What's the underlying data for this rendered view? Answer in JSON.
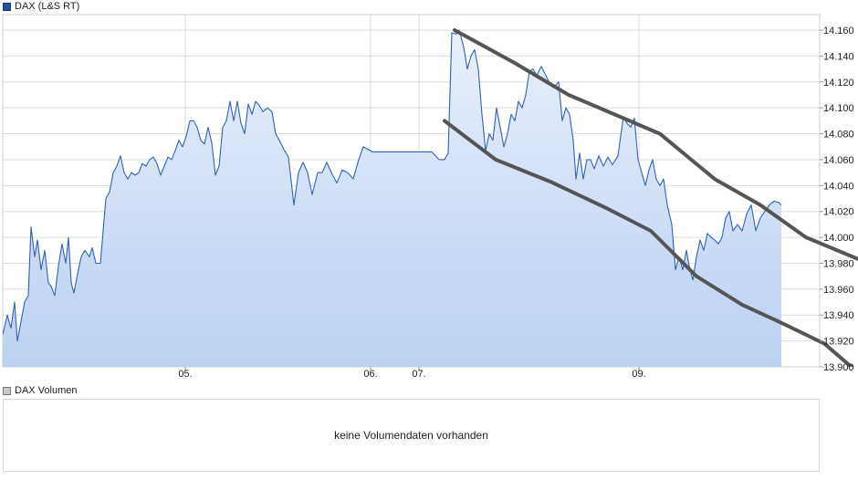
{
  "legend": {
    "price_label": "DAX (L&S RT)",
    "volume_label": "DAX Volumen"
  },
  "volume_panel": {
    "message": "keine Volumendaten vorhanden"
  },
  "colors": {
    "price_line": "#2e62b8",
    "area_top": "#e8f0fb",
    "area_bottom": "#bcd0f2",
    "channel_line": "#555555",
    "grid": "#dcdcdc"
  },
  "chart_data": {
    "type": "line",
    "y_ticks": [
      "13.900",
      "13.920",
      "13.940",
      "13.960",
      "13.980",
      "14.000",
      "14.020",
      "14.040",
      "14.060",
      "14.080",
      "14.100",
      "14.120",
      "14.140",
      "14.160"
    ],
    "ylim": [
      13.9,
      14.172
    ],
    "x_ticks": [
      {
        "label": "05.",
        "t": 200
      },
      {
        "label": "06.",
        "t": 403
      },
      {
        "label": "07.",
        "t": 456
      },
      {
        "label": "09.",
        "t": 697
      }
    ],
    "xlim": [
      0,
      895
    ],
    "grid": true,
    "series": [
      {
        "type": "area-line",
        "points": [
          [
            0,
            13.925
          ],
          [
            5,
            13.94
          ],
          [
            9,
            13.93
          ],
          [
            13,
            13.95
          ],
          [
            16,
            13.92
          ],
          [
            20,
            13.935
          ],
          [
            24,
            13.95
          ],
          [
            28,
            13.955
          ],
          [
            31,
            14.008
          ],
          [
            35,
            13.985
          ],
          [
            38,
            13.998
          ],
          [
            42,
            13.975
          ],
          [
            46,
            13.99
          ],
          [
            50,
            13.965
          ],
          [
            53,
            13.962
          ],
          [
            57,
            13.955
          ],
          [
            61,
            13.978
          ],
          [
            65,
            13.995
          ],
          [
            69,
            13.98
          ],
          [
            72,
            14.0
          ],
          [
            75,
            13.965
          ],
          [
            78,
            13.957
          ],
          [
            82,
            13.972
          ],
          [
            86,
            13.985
          ],
          [
            90,
            13.99
          ],
          [
            95,
            13.985
          ],
          [
            98,
            13.992
          ],
          [
            102,
            13.98
          ],
          [
            107,
            13.98
          ],
          [
            113,
            14.03
          ],
          [
            117,
            14.035
          ],
          [
            121,
            14.05
          ],
          [
            125,
            14.055
          ],
          [
            129,
            14.063
          ],
          [
            133,
            14.05
          ],
          [
            137,
            14.045
          ],
          [
            141,
            14.05
          ],
          [
            145,
            14.048
          ],
          [
            149,
            14.05
          ],
          [
            153,
            14.057
          ],
          [
            157,
            14.055
          ],
          [
            161,
            14.06
          ],
          [
            165,
            14.062
          ],
          [
            169,
            14.057
          ],
          [
            173,
            14.048
          ],
          [
            177,
            14.055
          ],
          [
            181,
            14.062
          ],
          [
            185,
            14.06
          ],
          [
            189,
            14.067
          ],
          [
            193,
            14.075
          ],
          [
            197,
            14.07
          ],
          [
            201,
            14.078
          ],
          [
            205,
            14.09
          ],
          [
            209,
            14.09
          ],
          [
            213,
            14.085
          ],
          [
            217,
            14.075
          ],
          [
            221,
            14.072
          ],
          [
            225,
            14.085
          ],
          [
            229,
            14.073
          ],
          [
            233,
            14.048
          ],
          [
            237,
            14.055
          ],
          [
            241,
            14.085
          ],
          [
            245,
            14.09
          ],
          [
            249,
            14.105
          ],
          [
            253,
            14.09
          ],
          [
            257,
            14.105
          ],
          [
            261,
            14.088
          ],
          [
            265,
            14.08
          ],
          [
            269,
            14.103
          ],
          [
            273,
            14.095
          ],
          [
            277,
            14.105
          ],
          [
            281,
            14.102
          ],
          [
            285,
            14.097
          ],
          [
            290,
            14.1
          ],
          [
            295,
            14.097
          ],
          [
            299,
            14.08
          ],
          [
            303,
            14.075
          ],
          [
            308,
            14.068
          ],
          [
            313,
            14.062
          ],
          [
            319,
            14.025
          ],
          [
            324,
            14.05
          ],
          [
            329,
            14.058
          ],
          [
            334,
            14.05
          ],
          [
            339,
            14.033
          ],
          [
            345,
            14.05
          ],
          [
            350,
            14.05
          ],
          [
            355,
            14.058
          ],
          [
            360,
            14.05
          ],
          [
            366,
            14.042
          ],
          [
            372,
            14.052
          ],
          [
            378,
            14.05
          ],
          [
            384,
            14.045
          ],
          [
            390,
            14.06
          ],
          [
            395,
            14.07
          ],
          [
            400,
            14.068
          ],
          [
            405,
            14.066
          ],
          [
            460,
            14.066
          ],
          [
            470,
            14.066
          ],
          [
            478,
            14.06
          ],
          [
            484,
            14.06
          ],
          [
            488,
            14.065
          ],
          [
            492,
            14.158
          ],
          [
            497,
            14.157
          ],
          [
            500,
            14.16
          ],
          [
            505,
            14.147
          ],
          [
            509,
            14.13
          ],
          [
            513,
            14.14
          ],
          [
            517,
            14.145
          ],
          [
            521,
            14.13
          ],
          [
            525,
            14.095
          ],
          [
            529,
            14.067
          ],
          [
            533,
            14.08
          ],
          [
            537,
            14.075
          ],
          [
            541,
            14.1
          ],
          [
            545,
            14.085
          ],
          [
            549,
            14.07
          ],
          [
            553,
            14.08
          ],
          [
            557,
            14.095
          ],
          [
            561,
            14.09
          ],
          [
            565,
            14.105
          ],
          [
            569,
            14.1
          ],
          [
            573,
            14.11
          ],
          [
            577,
            14.128
          ],
          [
            581,
            14.13
          ],
          [
            585,
            14.125
          ],
          [
            590,
            14.132
          ],
          [
            595,
            14.125
          ],
          [
            600,
            14.118
          ],
          [
            605,
            14.117
          ],
          [
            609,
            14.12
          ],
          [
            613,
            14.09
          ],
          [
            617,
            14.1
          ],
          [
            621,
            14.095
          ],
          [
            625,
            14.075
          ],
          [
            628,
            14.045
          ],
          [
            632,
            14.065
          ],
          [
            636,
            14.045
          ],
          [
            640,
            14.06
          ],
          [
            644,
            14.06
          ],
          [
            648,
            14.053
          ],
          [
            653,
            14.063
          ],
          [
            658,
            14.055
          ],
          [
            663,
            14.062
          ],
          [
            668,
            14.056
          ],
          [
            674,
            14.063
          ],
          [
            680,
            14.093
          ],
          [
            684,
            14.088
          ],
          [
            688,
            14.085
          ],
          [
            692,
            14.092
          ],
          [
            696,
            14.06
          ],
          [
            700,
            14.05
          ],
          [
            704,
            14.04
          ],
          [
            708,
            14.052
          ],
          [
            712,
            14.06
          ],
          [
            716,
            14.045
          ],
          [
            720,
            14.04
          ],
          [
            724,
            14.045
          ],
          [
            728,
            14.025
          ],
          [
            733,
            14.01
          ],
          [
            737,
            13.975
          ],
          [
            741,
            13.985
          ],
          [
            745,
            13.975
          ],
          [
            749,
            13.99
          ],
          [
            752,
            13.978
          ],
          [
            756,
            13.967
          ],
          [
            760,
            13.985
          ],
          [
            764,
            13.998
          ],
          [
            768,
            13.99
          ],
          [
            772,
            14.003
          ],
          [
            776,
            14.0
          ],
          [
            780,
            13.998
          ],
          [
            784,
            13.995
          ],
          [
            788,
            14.0
          ],
          [
            792,
            14.015
          ],
          [
            796,
            14.02
          ],
          [
            800,
            14.005
          ],
          [
            805,
            14.01
          ],
          [
            810,
            14.005
          ],
          [
            815,
            14.018
          ],
          [
            820,
            14.025
          ],
          [
            825,
            14.005
          ],
          [
            830,
            14.015
          ],
          [
            835,
            14.02
          ],
          [
            840,
            14.025
          ],
          [
            845,
            14.028
          ],
          [
            850,
            14.027
          ],
          [
            853,
            14.025
          ]
        ]
      },
      {
        "type": "channel-upper",
        "points": [
          [
            495,
            14.16
          ],
          [
            560,
            14.135
          ],
          [
            620,
            14.11
          ],
          [
            680,
            14.092
          ],
          [
            720,
            14.08
          ],
          [
            780,
            14.045
          ],
          [
            830,
            14.025
          ],
          [
            880,
            14.0
          ],
          [
            938,
            13.983
          ]
        ]
      },
      {
        "type": "channel-lower",
        "points": [
          [
            484,
            14.09
          ],
          [
            540,
            14.06
          ],
          [
            600,
            14.043
          ],
          [
            660,
            14.023
          ],
          [
            710,
            14.005
          ],
          [
            760,
            13.97
          ],
          [
            810,
            13.948
          ],
          [
            850,
            13.935
          ],
          [
            900,
            13.918
          ],
          [
            938,
            13.895
          ]
        ]
      }
    ]
  }
}
